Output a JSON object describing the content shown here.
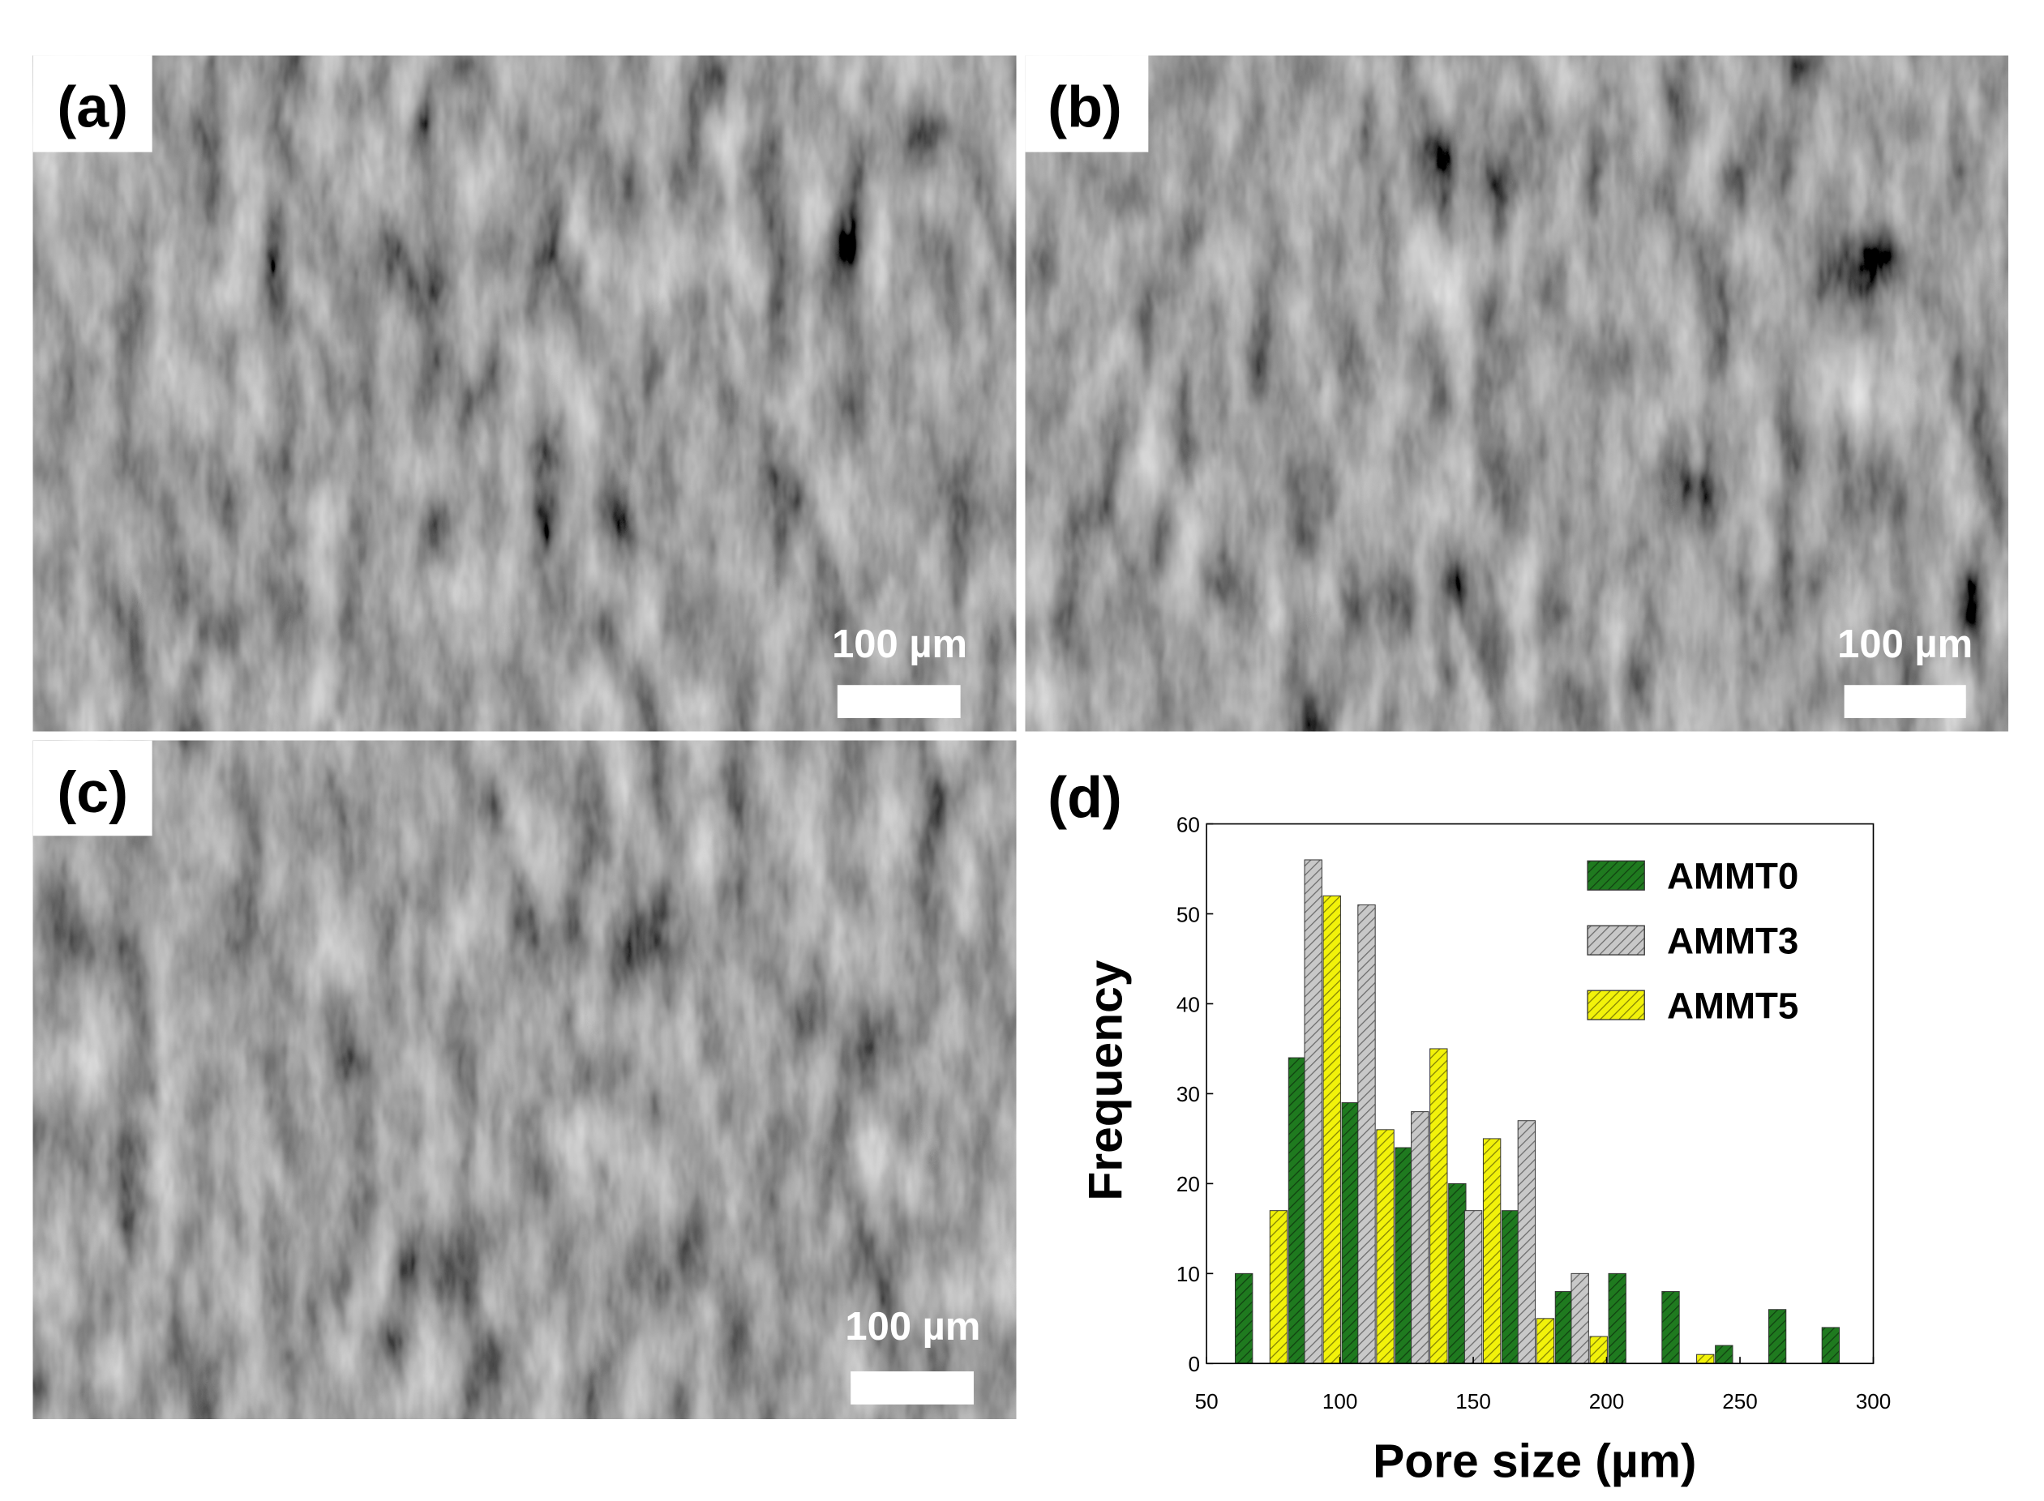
{
  "panels": [
    {
      "label": "(a)",
      "scale_bar": "100 µm"
    },
    {
      "label": "(b)",
      "scale_bar": "100 µm"
    },
    {
      "label": "(c)",
      "scale_bar": "100 µm"
    },
    {
      "label": "(d)"
    }
  ],
  "chart_data": {
    "type": "bar",
    "x_label": "Pore size (µm)",
    "y_label": "Frequency",
    "xlim": [
      50,
      300
    ],
    "xticks": [
      50,
      100,
      150,
      200,
      250,
      300
    ],
    "ylim": [
      0,
      60
    ],
    "yticks": [
      0,
      10,
      20,
      30,
      40,
      50,
      60
    ],
    "legend": "upper right",
    "series": [
      {
        "name": "AMMT0",
        "color": "#1f7a1f",
        "x": [
          64,
          84,
          104,
          124,
          144,
          164,
          184,
          204,
          224,
          244,
          264,
          284
        ],
        "values": [
          10,
          34,
          29,
          24,
          20,
          17,
          8,
          10,
          8,
          2,
          6,
          4
        ]
      },
      {
        "name": "AMMT3",
        "color": "#c8c8c8",
        "x": [
          90,
          110,
          130,
          150,
          170,
          190
        ],
        "values": [
          56,
          51,
          28,
          17,
          27,
          10
        ]
      },
      {
        "name": "AMMT5",
        "color": "#f2f20a",
        "x": [
          77,
          97,
          117,
          137,
          157,
          177,
          197,
          237
        ],
        "values": [
          17,
          52,
          26,
          35,
          25,
          5,
          3,
          1
        ]
      }
    ]
  }
}
